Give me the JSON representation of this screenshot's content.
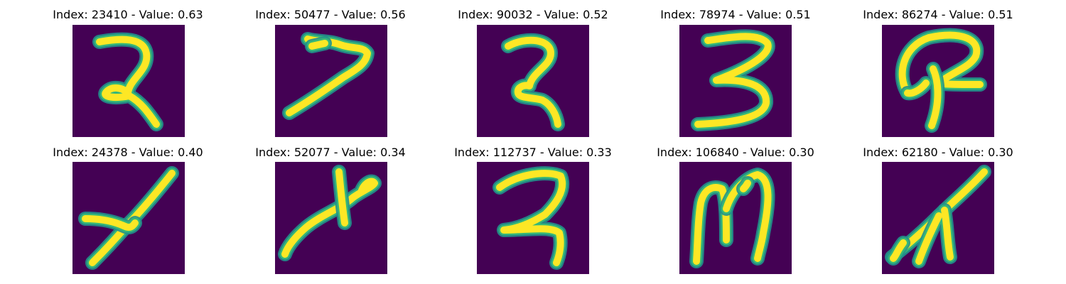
{
  "colors": {
    "background": "#440154",
    "stroke_core": "#fde725",
    "stroke_edge": "#35b779",
    "stroke_mid": "#21918c"
  },
  "panels": [
    {
      "title": "Index: 23410 - Value: 0.63"
    },
    {
      "title": "Index: 50477 - Value: 0.56"
    },
    {
      "title": "Index: 90032 - Value: 0.52"
    },
    {
      "title": "Index: 78974 - Value: 0.51"
    },
    {
      "title": "Index: 86274 - Value: 0.51"
    },
    {
      "title": "Index: 24378 - Value: 0.40"
    },
    {
      "title": "Index: 52077 - Value: 0.34"
    },
    {
      "title": "Index: 112737 - Value: 0.33"
    },
    {
      "title": "Index: 106840 - Value: 0.30"
    },
    {
      "title": "Index: 62180 - Value: 0.30"
    }
  ]
}
